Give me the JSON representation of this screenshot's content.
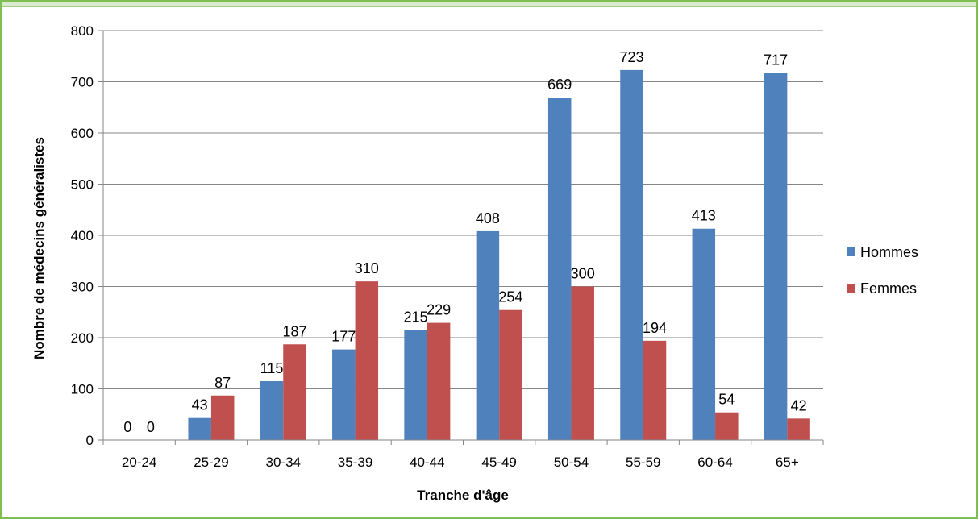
{
  "chart_data": {
    "type": "bar",
    "title": "",
    "xlabel": "Tranche d'âge",
    "ylabel": "Nombre de médecins généralistes",
    "ylim": [
      0,
      800
    ],
    "yticks": [
      0,
      100,
      200,
      300,
      400,
      500,
      600,
      700,
      800
    ],
    "grid": true,
    "legend_position": "right",
    "categories": [
      "20-24",
      "25-29",
      "30-34",
      "35-39",
      "40-44",
      "45-49",
      "50-54",
      "55-59",
      "60-64",
      "65+"
    ],
    "series": [
      {
        "name": "Hommes",
        "color": "#4f81bd",
        "values": [
          0,
          43,
          115,
          177,
          215,
          408,
          669,
          723,
          413,
          717
        ]
      },
      {
        "name": "Femmes",
        "color": "#c0504d",
        "values": [
          0,
          87,
          187,
          310,
          229,
          254,
          300,
          194,
          54,
          42
        ]
      }
    ]
  }
}
